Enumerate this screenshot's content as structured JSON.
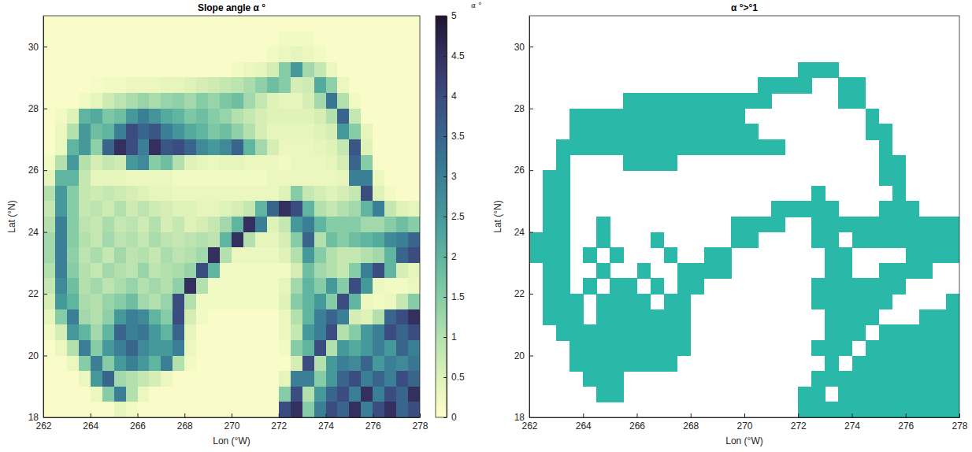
{
  "chart_data": [
    {
      "type": "heatmap",
      "title": "Slope angle α °",
      "xlabel": "Lon (°W)",
      "ylabel": "Lat (°N)",
      "xlim": [
        262,
        278
      ],
      "ylim": [
        18,
        31
      ],
      "xticks": [
        262,
        264,
        266,
        268,
        270,
        272,
        274,
        276,
        278
      ],
      "yticks": [
        18,
        20,
        22,
        24,
        26,
        28,
        30
      ],
      "colorbar_range": [
        0,
        5
      ],
      "colorbar_ticks": [
        0,
        0.5,
        1,
        1.5,
        2,
        2.5,
        3,
        3.5,
        4,
        4.5,
        5
      ],
      "x": [
        262.25,
        262.75,
        263.25,
        263.75,
        264.25,
        264.75,
        265.25,
        265.75,
        266.25,
        266.75,
        267.25,
        267.75,
        268.25,
        268.75,
        269.25,
        269.75,
        270.25,
        270.75,
        271.25,
        271.75,
        272.25,
        272.75,
        273.25,
        273.75,
        274.25,
        274.75,
        275.25,
        275.75,
        276.25,
        276.75,
        277.25,
        277.75
      ],
      "y": [
        30.75,
        30.25,
        29.75,
        29.25,
        28.75,
        28.25,
        27.75,
        27.25,
        26.75,
        26.25,
        25.75,
        25.25,
        24.75,
        24.25,
        23.75,
        23.25,
        22.75,
        22.25,
        21.75,
        21.25,
        20.75,
        20.25,
        19.75,
        19.25,
        18.75,
        18.25
      ],
      "values": [
        [
          0.1,
          0.1,
          0.1,
          0.1,
          0.1,
          0.1,
          0.1,
          0.1,
          0.1,
          0.1,
          0.1,
          0.1,
          0.1,
          0.1,
          0.1,
          0.1,
          0.1,
          0.1,
          0.1,
          0.1,
          0.1,
          0.1,
          0.1,
          0.1,
          0.1,
          0.1,
          0.1,
          0.1,
          0.1,
          0.1,
          0.1,
          0.1
        ],
        [
          0.1,
          0.1,
          0.1,
          0.1,
          0.1,
          0.1,
          0.1,
          0.1,
          0.1,
          0.1,
          0.1,
          0.1,
          0.1,
          0.1,
          0.1,
          0.1,
          0.1,
          0.1,
          0.1,
          0.1,
          0.2,
          0.2,
          0.2,
          0.1,
          0.1,
          0.1,
          0.1,
          0.1,
          0.1,
          0.1,
          0.1,
          0.1
        ],
        [
          0.1,
          0.1,
          0.1,
          0.1,
          0.1,
          0.1,
          0.1,
          0.1,
          0.1,
          0.1,
          0.1,
          0.1,
          0.1,
          0.1,
          0.1,
          0.1,
          0.1,
          0.1,
          0.1,
          0.2,
          0.3,
          0.4,
          0.3,
          0.2,
          0.1,
          0.1,
          0.1,
          0.1,
          0.1,
          0.1,
          0.1,
          0.1
        ],
        [
          0.1,
          0.1,
          0.1,
          0.1,
          0.1,
          0.1,
          0.1,
          0.1,
          0.1,
          0.1,
          0.1,
          0.1,
          0.1,
          0.1,
          0.1,
          0.1,
          0.2,
          0.3,
          0.4,
          0.6,
          1.5,
          2.5,
          1.2,
          0.8,
          0.3,
          0.1,
          0.1,
          0.1,
          0.1,
          0.1,
          0.1,
          0.1
        ],
        [
          0.1,
          0.1,
          0.1,
          0.1,
          0.15,
          0.2,
          0.2,
          0.3,
          0.3,
          0.3,
          0.4,
          0.4,
          0.5,
          0.6,
          0.7,
          0.8,
          0.9,
          1.1,
          1.4,
          1.8,
          1.5,
          0.6,
          0.7,
          2.2,
          1.4,
          0.3,
          0.1,
          0.1,
          0.1,
          0.1,
          0.1,
          0.1
        ],
        [
          0.1,
          0.1,
          0.1,
          0.2,
          0.4,
          0.7,
          0.9,
          1.1,
          1.3,
          1.1,
          1.3,
          1.4,
          1.2,
          1.5,
          1.3,
          1.6,
          1.8,
          1.2,
          0.8,
          0.5,
          0.4,
          0.4,
          0.6,
          1.2,
          3.2,
          1.0,
          0.2,
          0.1,
          0.1,
          0.1,
          0.1,
          0.1
        ],
        [
          0.1,
          0.2,
          0.5,
          2.0,
          2.2,
          1.6,
          1.8,
          2.5,
          3.0,
          2.6,
          2.2,
          2.0,
          1.6,
          1.8,
          1.5,
          1.3,
          1.0,
          0.8,
          0.6,
          0.5,
          0.5,
          0.5,
          0.5,
          0.6,
          1.0,
          3.5,
          0.8,
          0.1,
          0.1,
          0.1,
          0.1,
          0.1
        ],
        [
          0.1,
          0.3,
          1.0,
          2.5,
          1.8,
          2.0,
          3.0,
          4.0,
          3.5,
          3.8,
          3.0,
          2.6,
          2.2,
          2.0,
          1.6,
          1.8,
          1.4,
          1.0,
          0.6,
          0.4,
          0.4,
          0.4,
          0.4,
          0.5,
          0.6,
          2.5,
          1.5,
          0.4,
          0.1,
          0.1,
          0.1,
          0.1
        ],
        [
          0.1,
          0.3,
          2.0,
          2.5,
          1.4,
          3.5,
          4.5,
          4.0,
          3.0,
          4.5,
          3.8,
          4.0,
          3.5,
          2.8,
          2.5,
          2.8,
          3.5,
          2.0,
          1.2,
          0.6,
          0.3,
          0.3,
          0.3,
          0.4,
          0.5,
          0.8,
          3.8,
          0.5,
          0.1,
          0.1,
          0.1,
          0.1
        ],
        [
          0.2,
          1.0,
          2.5,
          1.0,
          0.6,
          0.8,
          0.7,
          2.5,
          2.8,
          1.5,
          1.8,
          1.0,
          0.5,
          0.4,
          0.3,
          0.4,
          0.4,
          0.3,
          0.3,
          0.3,
          0.2,
          0.3,
          0.3,
          0.3,
          0.4,
          0.6,
          3.5,
          1.5,
          0.1,
          0.1,
          0.1,
          0.1
        ],
        [
          0.4,
          2.0,
          2.0,
          0.8,
          0.4,
          0.4,
          0.4,
          0.3,
          0.3,
          0.3,
          0.3,
          0.2,
          0.2,
          0.2,
          0.2,
          0.2,
          0.2,
          0.2,
          0.2,
          0.3,
          0.3,
          0.3,
          0.3,
          0.3,
          0.3,
          0.4,
          3.0,
          3.0,
          0.3,
          0.1,
          0.1,
          0.1
        ],
        [
          1.0,
          2.5,
          1.5,
          0.8,
          0.7,
          0.8,
          0.7,
          0.6,
          0.5,
          0.4,
          0.4,
          0.3,
          0.3,
          0.3,
          0.3,
          0.3,
          0.3,
          0.3,
          0.3,
          0.3,
          0.5,
          1.5,
          0.8,
          0.6,
          0.5,
          0.6,
          0.8,
          4.0,
          0.5,
          0.2,
          0.1,
          0.1
        ],
        [
          0.8,
          2.5,
          1.5,
          0.8,
          0.9,
          0.7,
          1.0,
          0.7,
          0.9,
          0.7,
          0.6,
          0.5,
          0.5,
          0.4,
          0.4,
          0.5,
          0.6,
          0.8,
          2.0,
          3.5,
          4.5,
          4.0,
          2.0,
          1.0,
          0.8,
          1.0,
          1.2,
          2.0,
          3.0,
          0.8,
          0.5,
          0.4
        ],
        [
          1.0,
          3.0,
          1.5,
          0.9,
          0.8,
          1.1,
          0.8,
          0.9,
          0.7,
          1.0,
          0.6,
          0.8,
          0.5,
          0.6,
          0.8,
          1.2,
          2.0,
          4.5,
          3.0,
          0.5,
          0.8,
          2.5,
          3.0,
          2.0,
          1.5,
          1.5,
          1.5,
          1.2,
          1.2,
          1.5,
          1.8,
          1.5
        ],
        [
          1.2,
          3.0,
          1.5,
          1.0,
          0.8,
          1.2,
          0.9,
          1.0,
          0.8,
          1.1,
          0.9,
          0.8,
          0.9,
          1.0,
          0.9,
          2.0,
          4.5,
          1.0,
          0.4,
          0.4,
          0.6,
          1.5,
          3.5,
          1.0,
          1.8,
          1.5,
          1.8,
          2.0,
          2.2,
          2.8,
          3.0,
          3.5
        ],
        [
          1.2,
          3.0,
          1.4,
          0.9,
          1.1,
          0.8,
          1.2,
          0.9,
          1.0,
          0.8,
          1.1,
          0.9,
          1.0,
          1.2,
          4.5,
          1.0,
          0.3,
          0.3,
          0.3,
          0.3,
          0.5,
          1.0,
          2.5,
          1.5,
          1.0,
          0.8,
          0.8,
          1.0,
          1.2,
          2.0,
          3.5,
          4.0
        ],
        [
          1.0,
          3.0,
          1.5,
          1.0,
          0.8,
          1.2,
          1.0,
          0.9,
          1.3,
          0.9,
          1.0,
          1.1,
          1.3,
          4.0,
          2.0,
          0.2,
          0.2,
          0.2,
          0.2,
          0.2,
          0.2,
          0.6,
          1.8,
          1.2,
          1.0,
          0.8,
          1.5,
          3.0,
          4.0,
          2.0,
          0.6,
          0.4
        ],
        [
          0.8,
          2.8,
          1.8,
          1.0,
          1.2,
          0.9,
          1.1,
          1.3,
          1.0,
          1.2,
          1.0,
          1.4,
          4.5,
          1.0,
          0.2,
          0.2,
          0.2,
          0.2,
          0.2,
          0.2,
          0.4,
          1.2,
          2.0,
          1.5,
          2.5,
          1.5,
          4.0,
          2.5,
          0.3,
          0.2,
          0.2,
          0.3
        ],
        [
          0.6,
          2.5,
          2.0,
          1.1,
          1.0,
          1.3,
          1.5,
          1.8,
          1.2,
          1.0,
          1.3,
          4.0,
          1.0,
          0.2,
          0.2,
          0.2,
          0.2,
          0.2,
          0.2,
          0.2,
          0.5,
          1.5,
          2.0,
          2.5,
          1.5,
          4.0,
          2.0,
          0.3,
          0.2,
          0.3,
          0.8,
          1.5
        ],
        [
          0.4,
          1.5,
          3.0,
          1.2,
          1.0,
          1.4,
          2.5,
          3.0,
          2.8,
          2.0,
          1.5,
          4.0,
          0.6,
          0.2,
          0.1,
          0.1,
          0.1,
          0.1,
          0.1,
          0.1,
          0.3,
          1.0,
          2.0,
          3.0,
          3.5,
          3.0,
          0.6,
          0.5,
          1.0,
          3.5,
          4.0,
          4.5
        ],
        [
          0.2,
          0.6,
          2.5,
          2.0,
          1.2,
          2.0,
          3.5,
          3.0,
          3.2,
          2.5,
          2.0,
          3.5,
          0.4,
          0.1,
          0.1,
          0.1,
          0.1,
          0.1,
          0.1,
          0.1,
          0.3,
          0.8,
          2.5,
          3.0,
          4.0,
          1.0,
          1.5,
          2.5,
          3.0,
          4.0,
          3.5,
          4.0
        ],
        [
          0.1,
          0.3,
          1.0,
          3.0,
          1.5,
          2.5,
          3.0,
          3.5,
          2.8,
          2.5,
          2.5,
          3.0,
          0.3,
          0.1,
          0.1,
          0.1,
          0.1,
          0.1,
          0.1,
          0.1,
          0.2,
          1.5,
          2.0,
          4.0,
          1.0,
          2.5,
          2.2,
          2.5,
          3.0,
          2.5,
          3.5,
          3.0
        ],
        [
          0.1,
          0.1,
          0.3,
          1.5,
          3.0,
          1.5,
          2.5,
          3.0,
          2.5,
          2.0,
          3.0,
          1.0,
          0.2,
          0.1,
          0.1,
          0.1,
          0.1,
          0.1,
          0.1,
          0.1,
          0.1,
          0.6,
          4.0,
          1.0,
          2.5,
          3.0,
          2.8,
          3.5,
          2.5,
          3.0,
          2.8,
          3.2
        ],
        [
          0.1,
          0.1,
          0.1,
          0.3,
          2.5,
          3.5,
          1.2,
          1.0,
          0.8,
          0.6,
          0.3,
          0.1,
          0.1,
          0.1,
          0.1,
          0.1,
          0.1,
          0.1,
          0.1,
          0.1,
          0.4,
          3.0,
          3.0,
          1.5,
          2.5,
          3.5,
          4.0,
          3.0,
          3.5,
          3.0,
          4.0,
          3.5
        ],
        [
          0.1,
          0.1,
          0.1,
          0.1,
          0.3,
          1.5,
          3.0,
          1.0,
          0.3,
          0.1,
          0.1,
          0.1,
          0.1,
          0.1,
          0.1,
          0.1,
          0.1,
          0.1,
          0.1,
          0.1,
          1.5,
          4.0,
          1.0,
          2.5,
          3.5,
          4.0,
          3.0,
          4.5,
          3.0,
          4.0,
          3.5,
          4.5
        ],
        [
          0.1,
          0.1,
          0.1,
          0.1,
          0.1,
          0.1,
          0.4,
          0.2,
          0.1,
          0.1,
          0.1,
          0.1,
          0.1,
          0.1,
          0.1,
          0.1,
          0.1,
          0.1,
          0.1,
          0.1,
          4.0,
          4.5,
          1.5,
          3.0,
          4.0,
          3.5,
          4.5,
          3.0,
          4.0,
          4.5,
          3.5,
          4.0
        ]
      ]
    },
    {
      "type": "mask",
      "title": "α °>°1",
      "annotation": "α °",
      "xlabel": "Lon (°W)",
      "ylabel": "Lat (°N)",
      "xlim": [
        262,
        278
      ],
      "ylim": [
        18,
        31
      ],
      "xticks": [
        262,
        264,
        266,
        268,
        270,
        272,
        274,
        276,
        278
      ],
      "yticks": [
        18,
        20,
        22,
        24,
        26,
        28,
        30
      ],
      "threshold": 1,
      "color": "#2ab8a8"
    }
  ]
}
